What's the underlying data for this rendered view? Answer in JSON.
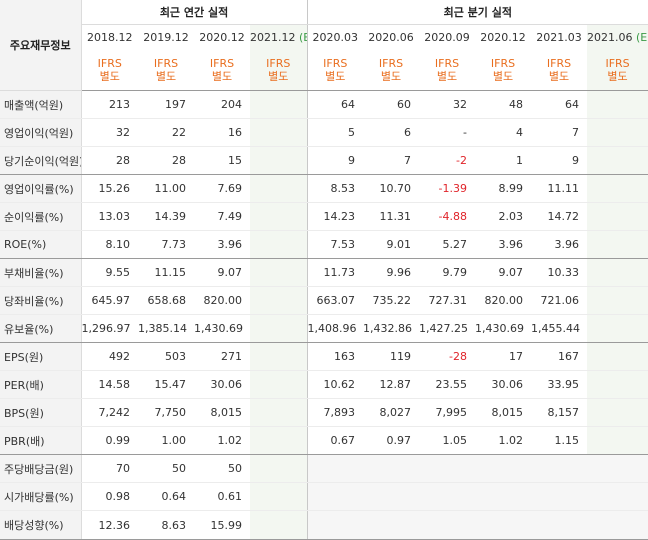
{
  "header": {
    "item_label": "주요재무정보",
    "annual_group_label": "최근 연간 실적",
    "quarterly_group_label": "최근 분기 실적",
    "ifrs_line1": "IFRS",
    "ifrs_line2": "별도",
    "annual_periods": [
      {
        "label": "2018.12",
        "est": ""
      },
      {
        "label": "2019.12",
        "est": ""
      },
      {
        "label": "2020.12",
        "est": ""
      },
      {
        "label": "2021.12",
        "est": "(E)"
      }
    ],
    "quarterly_periods": [
      {
        "label": "2020.03",
        "est": ""
      },
      {
        "label": "2020.06",
        "est": ""
      },
      {
        "label": "2020.09",
        "est": ""
      },
      {
        "label": "2020.12",
        "est": ""
      },
      {
        "label": "2021.03",
        "est": ""
      },
      {
        "label": "2021.06",
        "est": "(E)"
      }
    ]
  },
  "rows": [
    {
      "label": "매출액(억원)",
      "annual": [
        "213",
        "197",
        "204",
        ""
      ],
      "quarterly": [
        "64",
        "60",
        "32",
        "48",
        "64",
        ""
      ]
    },
    {
      "label": "영업이익(억원)",
      "annual": [
        "32",
        "22",
        "16",
        ""
      ],
      "quarterly": [
        "5",
        "6",
        "-",
        "4",
        "7",
        ""
      ]
    },
    {
      "label": "당기순이익(억원)",
      "annual": [
        "28",
        "28",
        "15",
        ""
      ],
      "quarterly": [
        "9",
        "7",
        "-2",
        "1",
        "9",
        ""
      ]
    },
    {
      "label": "영업이익률(%)",
      "annual": [
        "15.26",
        "11.00",
        "7.69",
        ""
      ],
      "quarterly": [
        "8.53",
        "10.70",
        "-1.39",
        "8.99",
        "11.11",
        ""
      ]
    },
    {
      "label": "순이익률(%)",
      "annual": [
        "13.03",
        "14.39",
        "7.49",
        ""
      ],
      "quarterly": [
        "14.23",
        "11.31",
        "-4.88",
        "2.03",
        "14.72",
        ""
      ]
    },
    {
      "label": "ROE(%)",
      "annual": [
        "8.10",
        "7.73",
        "3.96",
        ""
      ],
      "quarterly": [
        "7.53",
        "9.01",
        "5.27",
        "3.96",
        "3.96",
        ""
      ]
    },
    {
      "label": "부채비율(%)",
      "annual": [
        "9.55",
        "11.15",
        "9.07",
        ""
      ],
      "quarterly": [
        "11.73",
        "9.96",
        "9.79",
        "9.07",
        "10.33",
        ""
      ]
    },
    {
      "label": "당좌비율(%)",
      "annual": [
        "645.97",
        "658.68",
        "820.00",
        ""
      ],
      "quarterly": [
        "663.07",
        "735.22",
        "727.31",
        "820.00",
        "721.06",
        ""
      ]
    },
    {
      "label": "유보율(%)",
      "annual": [
        "1,296.97",
        "1,385.14",
        "1,430.69",
        ""
      ],
      "quarterly": [
        "1,408.96",
        "1,432.86",
        "1,427.25",
        "1,430.69",
        "1,455.44",
        ""
      ]
    },
    {
      "label": "EPS(원)",
      "annual": [
        "492",
        "503",
        "271",
        ""
      ],
      "quarterly": [
        "163",
        "119",
        "-28",
        "17",
        "167",
        ""
      ]
    },
    {
      "label": "PER(배)",
      "annual": [
        "14.58",
        "15.47",
        "30.06",
        ""
      ],
      "quarterly": [
        "10.62",
        "12.87",
        "23.55",
        "30.06",
        "33.95",
        ""
      ]
    },
    {
      "label": "BPS(원)",
      "annual": [
        "7,242",
        "7,750",
        "8,015",
        ""
      ],
      "quarterly": [
        "7,893",
        "8,027",
        "7,995",
        "8,015",
        "8,157",
        ""
      ]
    },
    {
      "label": "PBR(배)",
      "annual": [
        "0.99",
        "1.00",
        "1.02",
        ""
      ],
      "quarterly": [
        "0.67",
        "0.97",
        "1.05",
        "1.02",
        "1.15",
        ""
      ]
    },
    {
      "label": "주당배당금(원)",
      "annual": [
        "70",
        "50",
        "50",
        ""
      ],
      "quarterly": [
        "",
        "",
        "",
        "",
        "",
        ""
      ]
    },
    {
      "label": "시가배당률(%)",
      "annual": [
        "0.98",
        "0.64",
        "0.61",
        ""
      ],
      "quarterly": [
        "",
        "",
        "",
        "",
        "",
        ""
      ]
    },
    {
      "label": "배당성향(%)",
      "annual": [
        "12.36",
        "8.63",
        "15.99",
        ""
      ],
      "quarterly": [
        "",
        "",
        "",
        "",
        "",
        ""
      ]
    }
  ],
  "colors": {
    "ifrs": "#e96e1f",
    "negative": "#e0242a",
    "estimate_bg": "#f3f7f1",
    "estimate_mark": "#3a9a46",
    "label_bg": "#f3f3f3"
  }
}
